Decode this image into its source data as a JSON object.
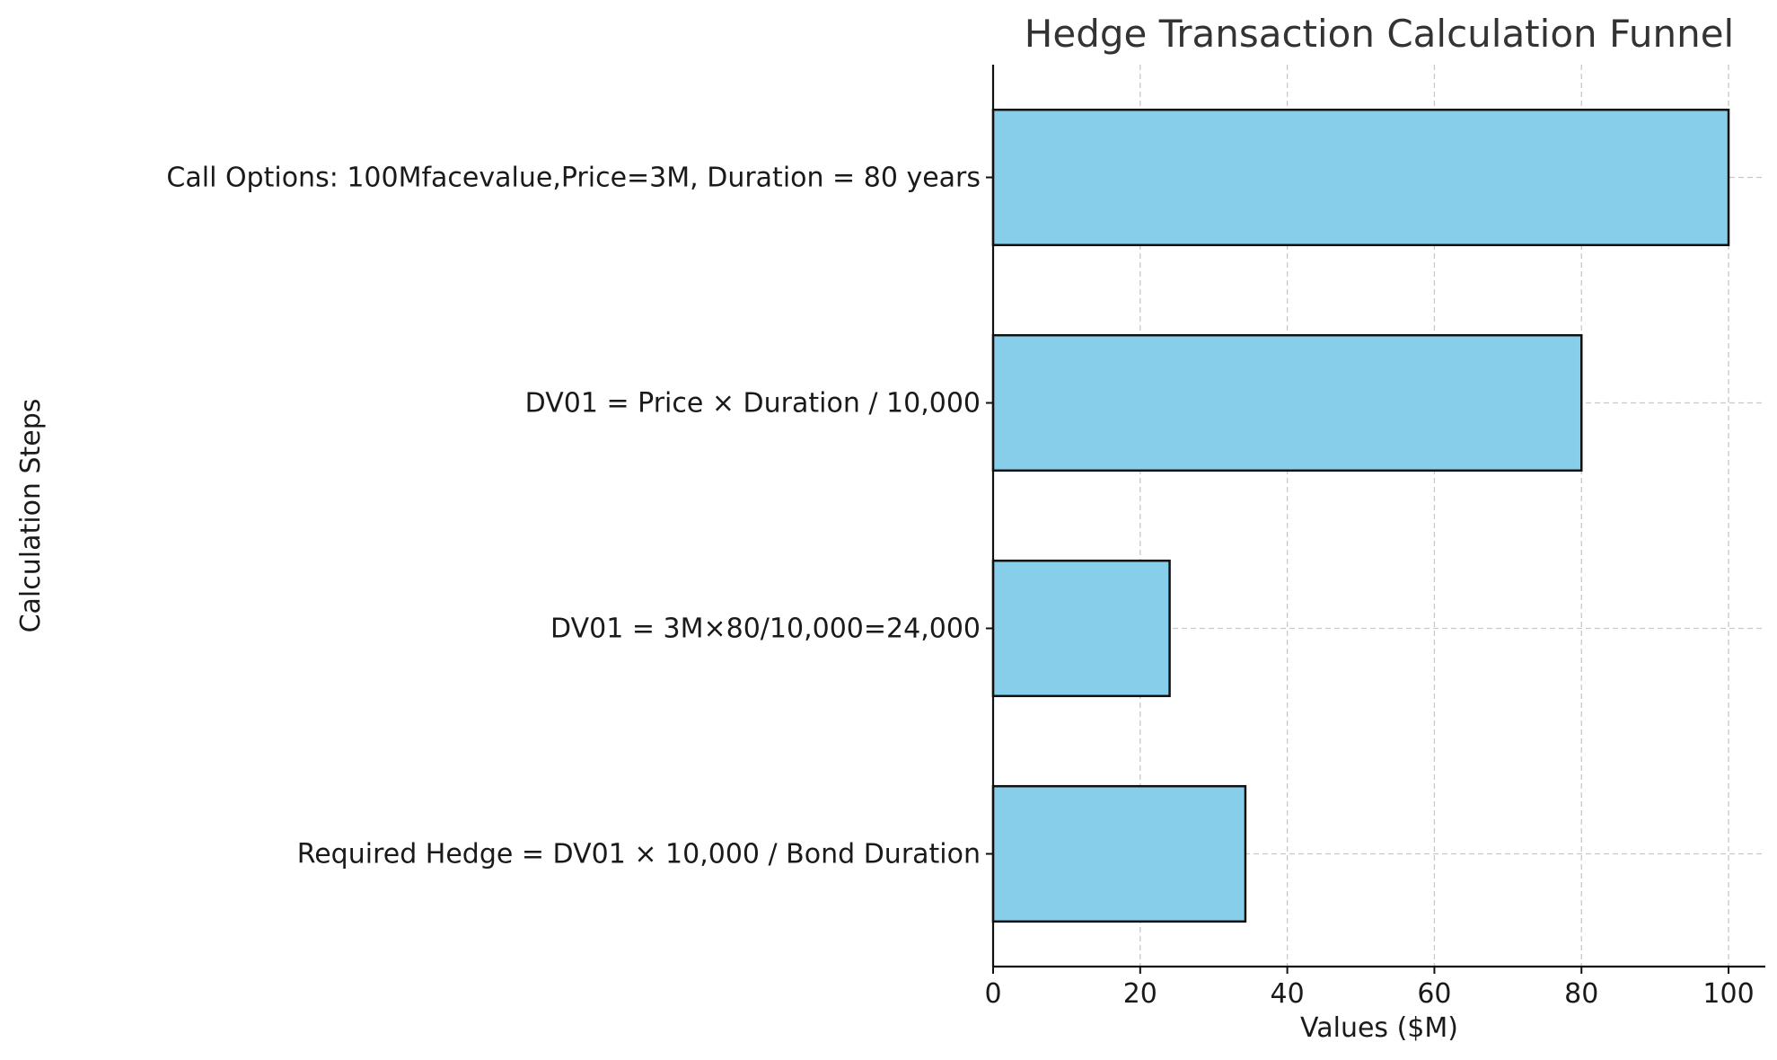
{
  "chart_data": {
    "type": "bar",
    "orientation": "horizontal",
    "title": "Hedge Transaction Calculation Funnel",
    "xlabel": "Values ($M)",
    "ylabel": "Calculation Steps",
    "categories": [
      "Call Options: 100Mfacevalue,Price=3M, Duration = 80 years",
      "DV01 = Price × Duration / 10,000",
      "DV01 = 3M×80/10,000=24,000",
      "Required Hedge = DV01 × 10,000 / Bond Duration"
    ],
    "values": [
      100,
      80,
      24,
      34.3
    ],
    "xlim": [
      0,
      105
    ],
    "xticks": [
      0,
      20,
      40,
      60,
      80,
      100
    ],
    "grid": true,
    "bar_color": "#87ceeb",
    "edge_color": "#111111"
  }
}
